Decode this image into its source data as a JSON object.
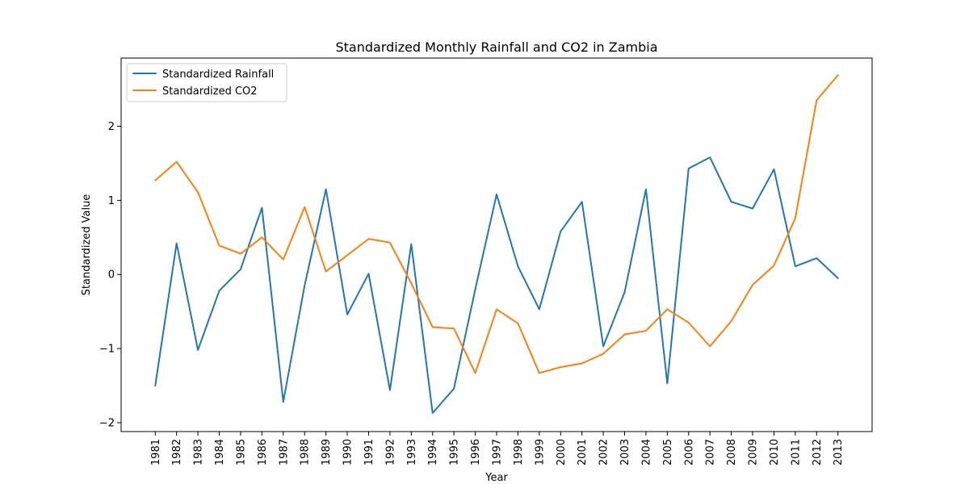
{
  "chart_data": {
    "type": "line",
    "title": "Standardized Monthly Rainfall and CO2 in Zambia",
    "xlabel": "Year",
    "ylabel": "Standardized Value",
    "x": [
      1981,
      1982,
      1983,
      1984,
      1985,
      1986,
      1987,
      1988,
      1989,
      1990,
      1991,
      1992,
      1993,
      1994,
      1995,
      1996,
      1997,
      1998,
      1999,
      2000,
      2001,
      2002,
      2003,
      2004,
      2005,
      2006,
      2007,
      2008,
      2009,
      2010,
      2011,
      2012,
      2013
    ],
    "x_tick_labels": [
      "1981",
      "1982",
      "1983",
      "1984",
      "1985",
      "1986",
      "1987",
      "1988",
      "1989",
      "1990",
      "1991",
      "1992",
      "1993",
      "1994",
      "1995",
      "1996",
      "1997",
      "1998",
      "1999",
      "2000",
      "2001",
      "2002",
      "2003",
      "2004",
      "2005",
      "2006",
      "2007",
      "2008",
      "2009",
      "2010",
      "2011",
      "2012",
      "2013"
    ],
    "xlim": [
      1979.4,
      2014.6
    ],
    "ylim": [
      -2.12,
      2.92
    ],
    "y_ticks": [
      -2,
      -1,
      0,
      1,
      2
    ],
    "y_tick_labels": [
      "−2",
      "−1",
      "0",
      "1",
      "2"
    ],
    "grid": false,
    "legend_position": "top-left",
    "series": [
      {
        "name": "Standardized Rainfall",
        "color": "#1f77b4",
        "values": [
          -1.5,
          0.42,
          -1.02,
          -0.22,
          0.07,
          0.9,
          -1.72,
          -0.15,
          1.15,
          -0.54,
          0.01,
          -1.56,
          0.41,
          -1.87,
          -1.54,
          -0.2,
          1.08,
          0.11,
          -0.47,
          0.58,
          0.98,
          -0.97,
          -0.24,
          1.15,
          -1.47,
          1.43,
          1.58,
          0.98,
          0.89,
          1.42,
          0.11,
          0.22,
          -0.05
        ]
      },
      {
        "name": "Standardized CO2",
        "color": "#ff7f0e",
        "values": [
          1.27,
          1.52,
          1.11,
          0.39,
          0.28,
          0.5,
          0.2,
          0.91,
          0.04,
          0.26,
          0.48,
          0.43,
          -0.12,
          -0.71,
          -0.73,
          -1.33,
          -0.47,
          -0.66,
          -1.33,
          -1.25,
          -1.2,
          -1.07,
          -0.81,
          -0.76,
          -0.47,
          -0.65,
          -0.97,
          -0.63,
          -0.14,
          0.12,
          0.76,
          2.35,
          2.69
        ]
      }
    ]
  }
}
